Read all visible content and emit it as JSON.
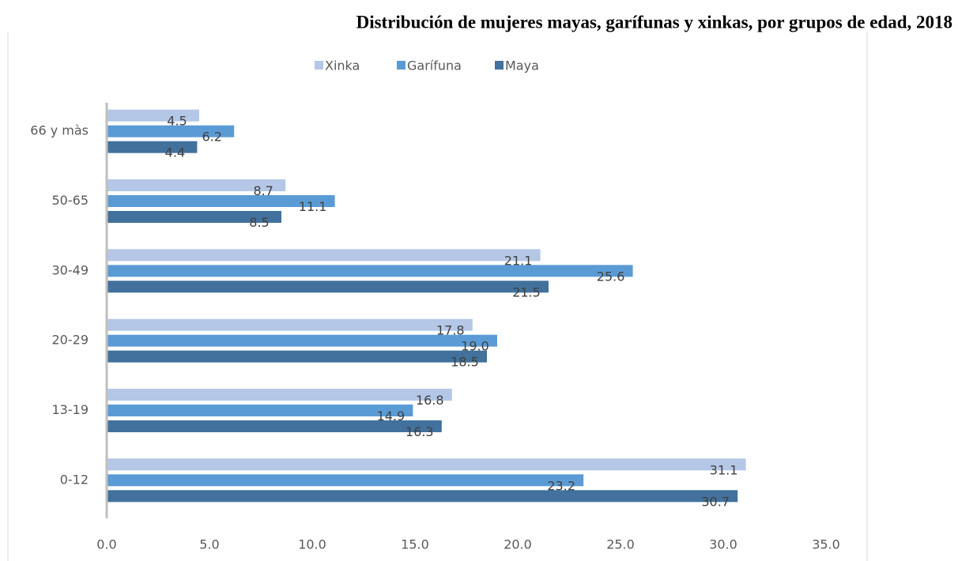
{
  "chart_data": {
    "type": "hbar",
    "title": "Distribución de mujeres mayas, garífunas y xinkas, por grupos de edad, 2018",
    "categories": [
      "0-12",
      "13-19",
      "20-29",
      "30-49",
      "50-65",
      "66 y màs"
    ],
    "series": [
      {
        "name": "Xinka",
        "color": "#b4c7e7",
        "values": [
          31.1,
          16.8,
          17.8,
          21.1,
          8.7,
          4.5
        ],
        "value_labels": [
          "31.1",
          "16.8",
          "17.8",
          "21.1",
          "8.7",
          "4.5"
        ]
      },
      {
        "name": "Garífuna",
        "color": "#5b9bd5",
        "values": [
          23.2,
          14.9,
          19.0,
          25.6,
          11.1,
          6.2
        ],
        "value_labels": [
          "23.2",
          "14.9",
          "19.0",
          "25.6",
          "11.1",
          "6.2"
        ]
      },
      {
        "name": "Maya",
        "color": "#41719c",
        "values": [
          30.7,
          16.3,
          18.5,
          21.5,
          8.5,
          4.4
        ],
        "value_labels": [
          "30.7",
          "16.3",
          "18.5",
          "21.5",
          "8.5",
          "4.4"
        ]
      }
    ],
    "xlim": [
      0,
      35
    ],
    "xticks": [
      {
        "value": 0,
        "label": "0.0"
      },
      {
        "value": 5,
        "label": "5.0"
      },
      {
        "value": 10,
        "label": "10.0"
      },
      {
        "value": 15,
        "label": "15.0"
      },
      {
        "value": 20,
        "label": "20.0"
      },
      {
        "value": 25,
        "label": "25.0"
      },
      {
        "value": 30,
        "label": "30.0"
      },
      {
        "value": 35,
        "label": "35.0"
      }
    ],
    "legend": "top"
  }
}
